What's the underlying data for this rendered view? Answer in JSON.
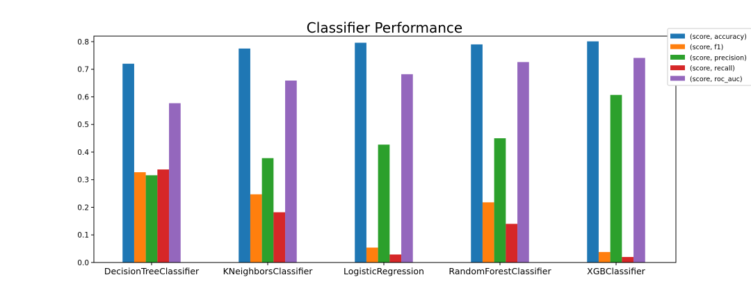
{
  "chart_data": {
    "type": "bar",
    "title": "Classifier Performance",
    "xlabel": "",
    "ylabel": "",
    "ylim": [
      0,
      0.82
    ],
    "yticks": [
      0.0,
      0.1,
      0.2,
      0.3,
      0.4,
      0.5,
      0.6,
      0.7,
      0.8
    ],
    "ytick_labels": [
      "0.0",
      "0.1",
      "0.2",
      "0.3",
      "0.4",
      "0.5",
      "0.6",
      "0.7",
      "0.8"
    ],
    "grid": false,
    "legend_position": "top-right, outside plot area",
    "categories": [
      "DecisionTreeClassifier",
      "KNeighborsClassifier",
      "LogisticRegression",
      "RandomForestClassifier",
      "XGBClassifier"
    ],
    "series": [
      {
        "name": "(score, accuracy)",
        "color": "#1f77b4",
        "values": [
          0.72,
          0.775,
          0.796,
          0.79,
          0.801
        ]
      },
      {
        "name": "(score, f1)",
        "color": "#ff7f0e",
        "values": [
          0.327,
          0.247,
          0.054,
          0.218,
          0.038
        ]
      },
      {
        "name": "(score, precision)",
        "color": "#2ca02c",
        "values": [
          0.316,
          0.378,
          0.427,
          0.45,
          0.607
        ]
      },
      {
        "name": "(score, recall)",
        "color": "#d62728",
        "values": [
          0.337,
          0.182,
          0.029,
          0.14,
          0.02
        ]
      },
      {
        "name": "(score, roc_auc)",
        "color": "#9467bd",
        "values": [
          0.577,
          0.659,
          0.682,
          0.726,
          0.741
        ]
      }
    ]
  }
}
